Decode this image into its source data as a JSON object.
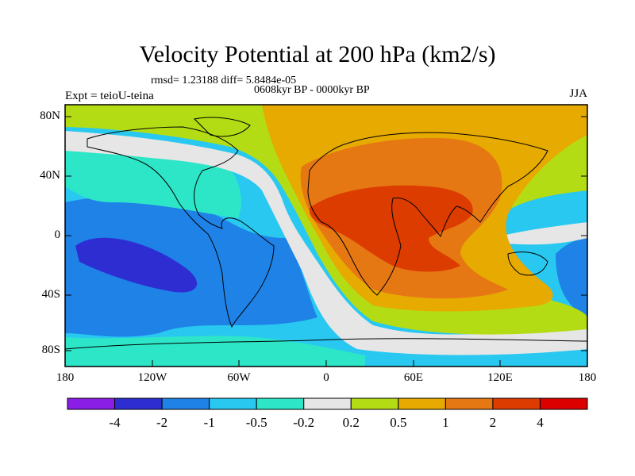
{
  "map": {
    "title": "Velocity Potential at 200 hPa (km2/s)",
    "stats_line": "rmsd= 1.23188 diff= 5.8484e-05",
    "period": "0608kyr BP - 0000kyr BP",
    "experiment": "Expt = teioU-teina",
    "season": "JJA",
    "lat_labels": [
      "80N",
      "40N",
      "0",
      "40S",
      "80S"
    ],
    "lon_labels": [
      "180",
      "120W",
      "60W",
      "0",
      "60E",
      "120E",
      "180"
    ]
  },
  "colorbar": {
    "labels": [
      "-4",
      "-2",
      "-1",
      "-0.5",
      "-0.2",
      "0.2",
      "0.5",
      "1",
      "2",
      "4"
    ],
    "colors": [
      "#8a1ee6",
      "#2d2dd2",
      "#1f82e6",
      "#28c8f0",
      "#2de6c8",
      "#e6e6e6",
      "#b4dc14",
      "#e6aa00",
      "#e67814",
      "#dc3c00",
      "#dc0000"
    ]
  },
  "palette": {
    "ocean_mid": "#28c8f0",
    "land_pos": "#e6aa00"
  }
}
